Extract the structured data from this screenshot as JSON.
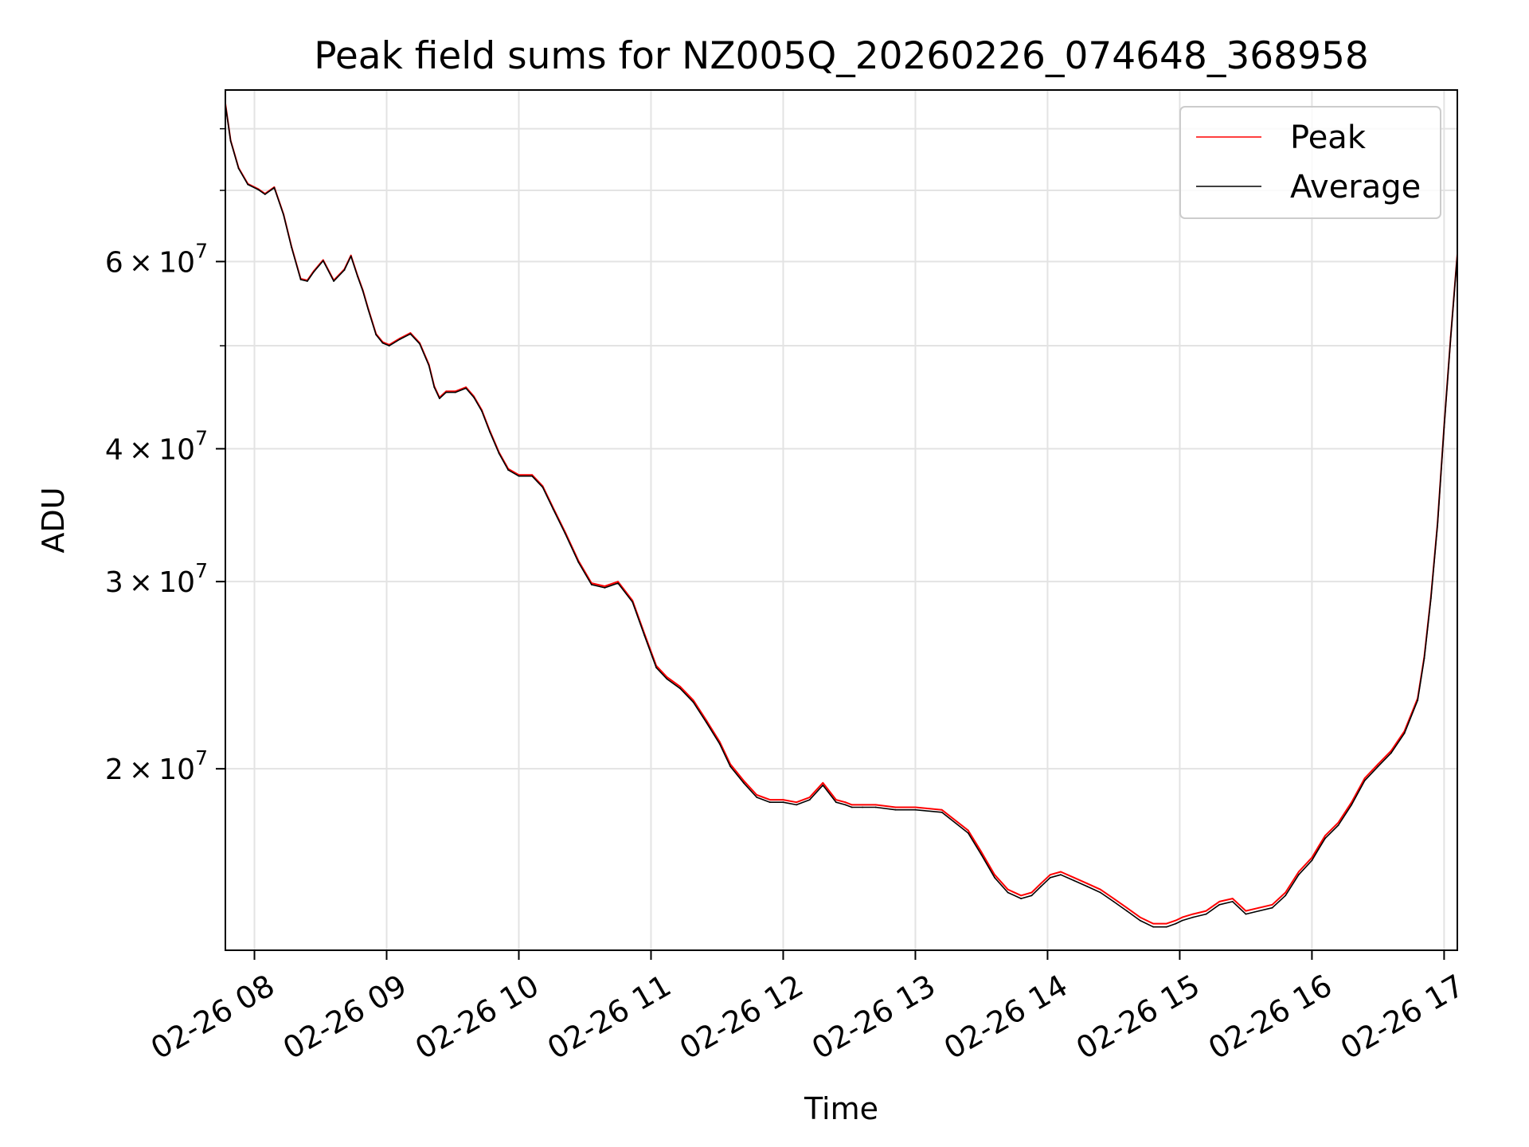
{
  "chart_data": {
    "type": "line",
    "title": "Peak field sums for NZ005Q_20260226_074648_368958",
    "xlabel": "Time",
    "ylabel": "ADU",
    "x_unit": "hours of day (2026-02-26)",
    "xlim": [
      7.78,
      17.1
    ],
    "ylim": [
      13500000,
      87000000
    ],
    "yscale": "log",
    "grid": true,
    "legend_position": "top-right",
    "x_ticks": [
      {
        "value": 8,
        "label": "02-26 08"
      },
      {
        "value": 9,
        "label": "02-26 09"
      },
      {
        "value": 10,
        "label": "02-26 10"
      },
      {
        "value": 11,
        "label": "02-26 11"
      },
      {
        "value": 12,
        "label": "02-26 12"
      },
      {
        "value": 13,
        "label": "02-26 13"
      },
      {
        "value": 14,
        "label": "02-26 14"
      },
      {
        "value": 15,
        "label": "02-26 15"
      },
      {
        "value": 16,
        "label": "02-26 16"
      },
      {
        "value": 17,
        "label": "02-26 17"
      }
    ],
    "y_ticks": [
      {
        "value": 20000000,
        "mantissa": "2",
        "base": "10",
        "exp": "7"
      },
      {
        "value": 30000000,
        "mantissa": "3",
        "base": "10",
        "exp": "7"
      },
      {
        "value": 40000000,
        "mantissa": "4",
        "base": "10",
        "exp": "7"
      },
      {
        "value": 60000000,
        "mantissa": "6",
        "base": "10",
        "exp": "7"
      }
    ],
    "y_minor_ticks": [
      50000000,
      70000000,
      80000000
    ],
    "series": [
      {
        "name": "Peak",
        "color": "#ff0000",
        "x": [
          7.78,
          7.82,
          7.88,
          7.95,
          8.03,
          8.08,
          8.15,
          8.22,
          8.28,
          8.35,
          8.4,
          8.45,
          8.52,
          8.6,
          8.68,
          8.73,
          8.78,
          8.82,
          8.86,
          8.92,
          8.97,
          9.02,
          9.1,
          9.18,
          9.25,
          9.32,
          9.36,
          9.4,
          9.45,
          9.52,
          9.6,
          9.66,
          9.72,
          9.78,
          9.85,
          9.92,
          10.0,
          10.1,
          10.18,
          10.26,
          10.35,
          10.45,
          10.55,
          10.65,
          10.75,
          10.86,
          10.95,
          11.04,
          11.12,
          11.22,
          11.32,
          11.42,
          11.52,
          11.6,
          11.7,
          11.8,
          11.9,
          12.0,
          12.1,
          12.2,
          12.3,
          12.4,
          12.47,
          12.52,
          12.6,
          12.7,
          12.85,
          13.0,
          13.2,
          13.4,
          13.5,
          13.6,
          13.7,
          13.8,
          13.88,
          13.95,
          14.02,
          14.1,
          14.2,
          14.3,
          14.4,
          14.5,
          14.6,
          14.7,
          14.8,
          14.9,
          14.97,
          15.02,
          15.1,
          15.2,
          15.3,
          15.4,
          15.5,
          15.6,
          15.7,
          15.8,
          15.9,
          16.0,
          16.05,
          16.1,
          16.2,
          16.3,
          16.4,
          16.5,
          16.6,
          16.7,
          16.8,
          16.85,
          16.9,
          16.95,
          17.0,
          17.05,
          17.1
        ],
        "values": [
          84500000,
          78000000,
          73500000,
          71000000,
          70200000,
          69500000,
          70500000,
          66500000,
          62000000,
          57800000,
          57600000,
          58800000,
          60200000,
          57600000,
          59000000,
          60800000,
          58200000,
          56400000,
          54200000,
          51300000,
          50400000,
          50100000,
          50800000,
          51400000,
          50300000,
          48000000,
          45800000,
          44700000,
          45300000,
          45300000,
          45700000,
          44800000,
          43500000,
          41600000,
          39700000,
          38300000,
          37800000,
          37800000,
          36900000,
          35200000,
          33400000,
          31400000,
          29900000,
          29700000,
          30000000,
          28800000,
          26800000,
          25000000,
          24400000,
          23900000,
          23200000,
          22200000,
          21200000,
          20200000,
          19500000,
          18900000,
          18700000,
          18700000,
          18600000,
          18800000,
          19400000,
          18700000,
          18600000,
          18500000,
          18500000,
          18500000,
          18400000,
          18400000,
          18300000,
          17500000,
          16700000,
          15900000,
          15400000,
          15200000,
          15300000,
          15600000,
          15900000,
          16000000,
          15800000,
          15600000,
          15400000,
          15100000,
          14800000,
          14500000,
          14300000,
          14300000,
          14400000,
          14500000,
          14600000,
          14700000,
          15000000,
          15100000,
          14700000,
          14800000,
          14900000,
          15300000,
          16000000,
          16500000,
          16900000,
          17300000,
          17800000,
          18600000,
          19600000,
          20200000,
          20800000,
          21700000,
          23300000,
          25500000,
          29000000,
          34000000,
          42000000,
          51000000,
          61000000
        ]
      },
      {
        "name": "Average",
        "color": "#000000",
        "x": [
          7.78,
          7.82,
          7.88,
          7.95,
          8.03,
          8.08,
          8.15,
          8.22,
          8.28,
          8.35,
          8.4,
          8.45,
          8.52,
          8.6,
          8.68,
          8.73,
          8.78,
          8.82,
          8.86,
          8.92,
          8.97,
          9.02,
          9.1,
          9.18,
          9.25,
          9.32,
          9.36,
          9.4,
          9.45,
          9.52,
          9.6,
          9.66,
          9.72,
          9.78,
          9.85,
          9.92,
          10.0,
          10.1,
          10.18,
          10.26,
          10.35,
          10.45,
          10.55,
          10.65,
          10.75,
          10.86,
          10.95,
          11.04,
          11.12,
          11.22,
          11.32,
          11.42,
          11.52,
          11.6,
          11.7,
          11.8,
          11.9,
          12.0,
          12.1,
          12.2,
          12.3,
          12.4,
          12.47,
          12.52,
          12.6,
          12.7,
          12.85,
          13.0,
          13.2,
          13.4,
          13.5,
          13.6,
          13.7,
          13.8,
          13.88,
          13.95,
          14.02,
          14.1,
          14.2,
          14.3,
          14.4,
          14.5,
          14.6,
          14.7,
          14.8,
          14.9,
          14.97,
          15.02,
          15.1,
          15.2,
          15.3,
          15.4,
          15.5,
          15.6,
          15.7,
          15.8,
          15.9,
          16.0,
          16.05,
          16.1,
          16.2,
          16.3,
          16.4,
          16.5,
          16.6,
          16.7,
          16.8,
          16.85,
          16.9,
          16.95,
          17.0,
          17.05,
          17.1
        ],
        "values": [
          84300000,
          77900000,
          73400000,
          70900000,
          70100000,
          69400000,
          70400000,
          66400000,
          61900000,
          57700000,
          57500000,
          58700000,
          60100000,
          57500000,
          58900000,
          60700000,
          58100000,
          56300000,
          54100000,
          51200000,
          50300000,
          50000000,
          50700000,
          51300000,
          50200000,
          47900000,
          45700000,
          44600000,
          45200000,
          45200000,
          45600000,
          44700000,
          43400000,
          41500000,
          39600000,
          38200000,
          37700000,
          37700000,
          36800000,
          35100000,
          33300000,
          31300000,
          29800000,
          29600000,
          29900000,
          28700000,
          26700000,
          24900000,
          24300000,
          23800000,
          23100000,
          22100000,
          21100000,
          20100000,
          19400000,
          18800000,
          18600000,
          18600000,
          18500000,
          18700000,
          19300000,
          18600000,
          18500000,
          18400000,
          18400000,
          18400000,
          18300000,
          18300000,
          18200000,
          17400000,
          16600000,
          15800000,
          15300000,
          15100000,
          15200000,
          15500000,
          15800000,
          15900000,
          15700000,
          15500000,
          15300000,
          15000000,
          14700000,
          14400000,
          14200000,
          14200000,
          14300000,
          14400000,
          14500000,
          14600000,
          14900000,
          15000000,
          14600000,
          14700000,
          14800000,
          15200000,
          15900000,
          16400000,
          16800000,
          17200000,
          17700000,
          18500000,
          19500000,
          20100000,
          20700000,
          21600000,
          23200000,
          25400000,
          28900000,
          33900000,
          41900000,
          50900000,
          60900000
        ]
      }
    ]
  }
}
